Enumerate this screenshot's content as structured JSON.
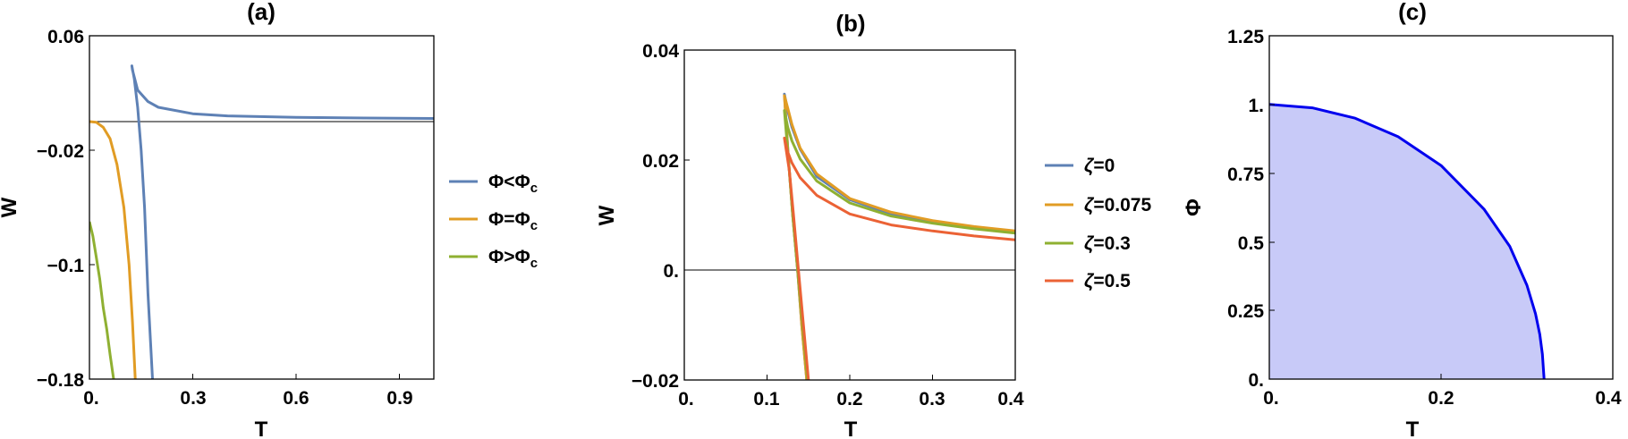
{
  "chart_data": [
    {
      "panel": "a",
      "type": "line",
      "title": "(a)",
      "xlabel": "T",
      "ylabel": "W",
      "xlim": [
        0,
        1.0
      ],
      "ylim": [
        -0.18,
        0.06
      ],
      "xticks": [
        "0.",
        "0.3",
        "0.6",
        "0.9"
      ],
      "yticks": [
        "0.06",
        "−0.02",
        "−0.1",
        "−0.18"
      ],
      "reference_line_y": 0,
      "legend_position": "right",
      "series": [
        {
          "name": "Φ<Φc",
          "color": "#5E81B5",
          "points": [
            [
              0.183,
              -0.18
            ],
            [
              0.17,
              -0.12
            ],
            [
              0.16,
              -0.06
            ],
            [
              0.15,
              -0.02
            ],
            [
              0.14,
              0.01
            ],
            [
              0.13,
              0.03
            ],
            [
              0.123,
              0.039
            ],
            [
              0.125,
              0.036
            ],
            [
              0.14,
              0.022
            ],
            [
              0.17,
              0.014
            ],
            [
              0.2,
              0.01
            ],
            [
              0.3,
              0.0055
            ],
            [
              0.4,
              0.004
            ],
            [
              0.6,
              0.003
            ],
            [
              0.8,
              0.0025
            ],
            [
              1.0,
              0.0022
            ]
          ]
        },
        {
          "name": "Φ=Φc",
          "color": "#E19C24",
          "points": [
            [
              0.0,
              0.0
            ],
            [
              0.02,
              -0.0005
            ],
            [
              0.04,
              -0.004
            ],
            [
              0.06,
              -0.012
            ],
            [
              0.08,
              -0.03
            ],
            [
              0.1,
              -0.06
            ],
            [
              0.115,
              -0.1
            ],
            [
              0.125,
              -0.14
            ],
            [
              0.133,
              -0.18
            ]
          ]
        },
        {
          "name": "Φ>Φc",
          "color": "#8FB032",
          "points": [
            [
              0.0,
              -0.07
            ],
            [
              0.01,
              -0.08
            ],
            [
              0.02,
              -0.095
            ],
            [
              0.03,
              -0.11
            ],
            [
              0.04,
              -0.13
            ],
            [
              0.05,
              -0.145
            ],
            [
              0.06,
              -0.163
            ],
            [
              0.07,
              -0.18
            ]
          ]
        }
      ]
    },
    {
      "panel": "b",
      "type": "line",
      "title": "(b)",
      "xlabel": "T",
      "ylabel": "W",
      "xlim": [
        0,
        0.4
      ],
      "ylim": [
        -0.02,
        0.04
      ],
      "xticks": [
        "0.",
        "0.1",
        "0.2",
        "0.3",
        "0.4"
      ],
      "yticks": [
        "0.04",
        "0.02",
        "0.",
        "−0.02"
      ],
      "reference_line_y": 0,
      "legend_position": "right",
      "series": [
        {
          "name": "ζ=0",
          "color": "#5E81B5",
          "points": [
            [
              0.148,
              -0.02
            ],
            [
              0.142,
              -0.01
            ],
            [
              0.137,
              0.0
            ],
            [
              0.131,
              0.01
            ],
            [
              0.126,
              0.02
            ],
            [
              0.121,
              0.032
            ],
            [
              0.125,
              0.029
            ],
            [
              0.13,
              0.026
            ],
            [
              0.14,
              0.022
            ],
            [
              0.16,
              0.017
            ],
            [
              0.2,
              0.0128
            ],
            [
              0.25,
              0.0102
            ],
            [
              0.3,
              0.0087
            ],
            [
              0.35,
              0.0077
            ],
            [
              0.4,
              0.0069
            ]
          ]
        },
        {
          "name": "ζ=0.075",
          "color": "#E19C24",
          "points": [
            [
              0.148,
              -0.02
            ],
            [
              0.142,
              -0.01
            ],
            [
              0.137,
              0.0
            ],
            [
              0.131,
              0.01
            ],
            [
              0.126,
              0.02
            ],
            [
              0.121,
              0.0317
            ],
            [
              0.125,
              0.0295
            ],
            [
              0.13,
              0.0265
            ],
            [
              0.14,
              0.0222
            ],
            [
              0.16,
              0.0175
            ],
            [
              0.2,
              0.013
            ],
            [
              0.25,
              0.0105
            ],
            [
              0.3,
              0.009
            ],
            [
              0.35,
              0.0079
            ],
            [
              0.4,
              0.0071
            ]
          ]
        },
        {
          "name": "ζ=0.3",
          "color": "#8FB032",
          "points": [
            [
              0.149,
              -0.02
            ],
            [
              0.143,
              -0.01
            ],
            [
              0.137,
              0.0
            ],
            [
              0.131,
              0.01
            ],
            [
              0.126,
              0.02
            ],
            [
              0.121,
              0.029
            ],
            [
              0.125,
              0.026
            ],
            [
              0.13,
              0.0235
            ],
            [
              0.14,
              0.0202
            ],
            [
              0.16,
              0.0162
            ],
            [
              0.2,
              0.0122
            ],
            [
              0.25,
              0.0098
            ],
            [
              0.3,
              0.0085
            ],
            [
              0.35,
              0.0075
            ],
            [
              0.4,
              0.0067
            ]
          ]
        },
        {
          "name": "ζ=0.5",
          "color": "#EB6235",
          "points": [
            [
              0.15,
              -0.02
            ],
            [
              0.144,
              -0.01
            ],
            [
              0.138,
              0.0
            ],
            [
              0.132,
              0.01
            ],
            [
              0.127,
              0.018
            ],
            [
              0.121,
              0.024
            ],
            [
              0.125,
              0.0215
            ],
            [
              0.13,
              0.0195
            ],
            [
              0.14,
              0.0168
            ],
            [
              0.16,
              0.0136
            ],
            [
              0.2,
              0.0102
            ],
            [
              0.25,
              0.0082
            ],
            [
              0.3,
              0.0071
            ],
            [
              0.35,
              0.0062
            ],
            [
              0.4,
              0.0055
            ]
          ]
        }
      ]
    },
    {
      "panel": "c",
      "type": "area",
      "title": "(c)",
      "xlabel": "T",
      "ylabel": "Φ",
      "xlim": [
        0,
        0.4
      ],
      "ylim": [
        0,
        1.25
      ],
      "xticks": [
        "0.",
        "0.2",
        "0.4"
      ],
      "yticks": [
        "1.25",
        "1.",
        "0.75",
        "0.5",
        "0.25",
        "0."
      ],
      "series": [
        {
          "color": "#0000EE",
          "fill": "#C8CAF8",
          "points": [
            [
              0.0,
              1.0
            ],
            [
              0.05,
              0.9876
            ],
            [
              0.1,
              0.9499
            ],
            [
              0.15,
              0.8825
            ],
            [
              0.2,
              0.7777
            ],
            [
              0.25,
              0.6187
            ],
            [
              0.28,
              0.4835
            ],
            [
              0.3,
              0.3417
            ],
            [
              0.31,
              0.2381
            ],
            [
              0.315,
              0.1625
            ],
            [
              0.318,
              0.0906
            ],
            [
              0.32,
              0.0
            ]
          ]
        }
      ]
    }
  ]
}
